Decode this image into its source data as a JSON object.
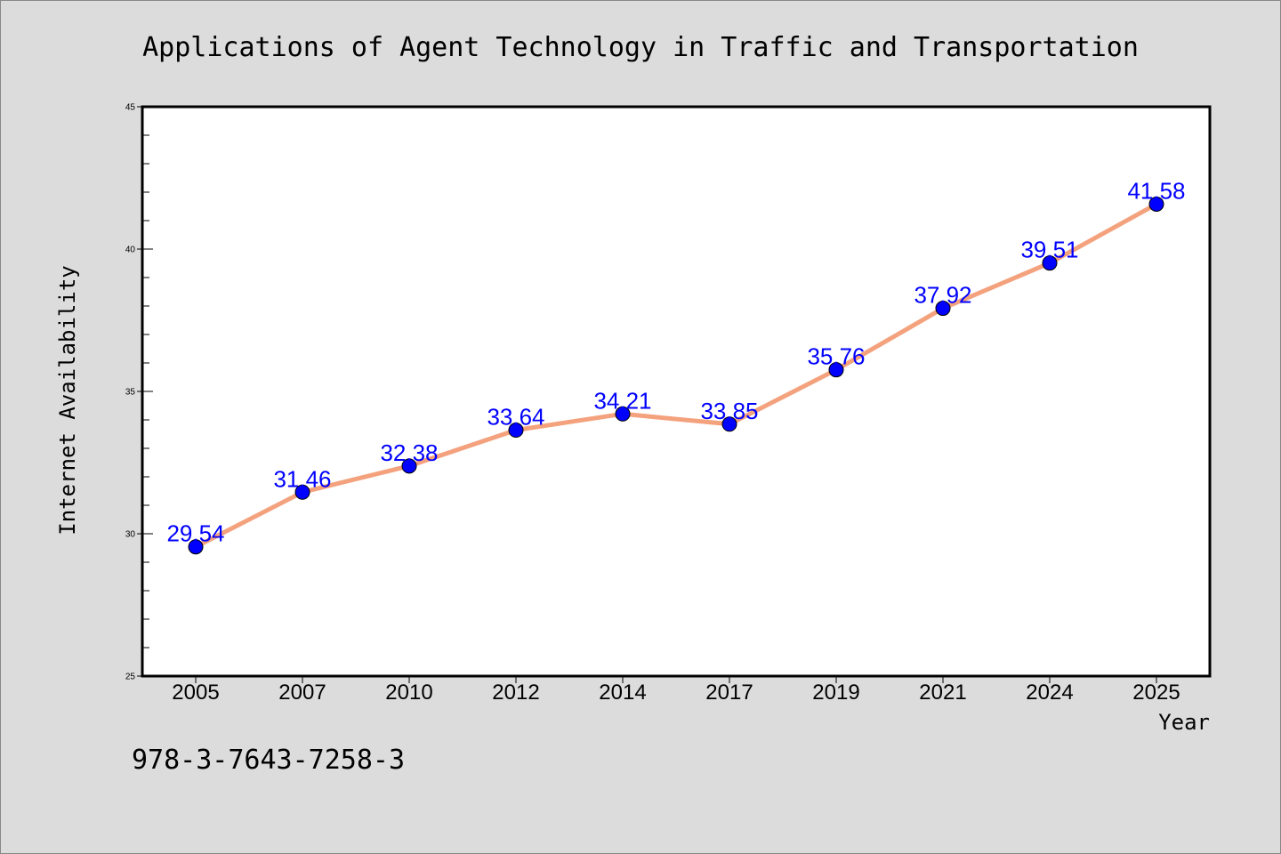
{
  "colors": {
    "line": "#f4a27d",
    "marker": "#0000ff",
    "label": "#0000ff",
    "axis": "#000000",
    "plot_bg": "#ffffff",
    "page_bg": "#dcdcdc"
  },
  "footer": {
    "text": "978-3-7643-7258-3"
  },
  "chart_data": {
    "type": "line",
    "title": "Applications of Agent Technology in Traffic and Transportation",
    "xlabel": "Year",
    "ylabel": "Internet Availability",
    "categories": [
      "2005",
      "2007",
      "2010",
      "2012",
      "2014",
      "2017",
      "2019",
      "2021",
      "2024",
      "2025"
    ],
    "series": [
      {
        "values": [
          29.54,
          31.46,
          32.38,
          33.64,
          34.21,
          33.85,
          35.76,
          37.92,
          39.51,
          41.58
        ],
        "labels": [
          "29.54",
          "31.46",
          "32.38",
          "33.64",
          "34.21",
          "33.85",
          "35.76",
          "37.92",
          "39.51",
          "41.58"
        ]
      }
    ],
    "ylim": [
      25,
      45
    ],
    "yticks": [
      "25",
      "30",
      "35",
      "40",
      "45"
    ],
    "grid": false,
    "legend": "none"
  }
}
